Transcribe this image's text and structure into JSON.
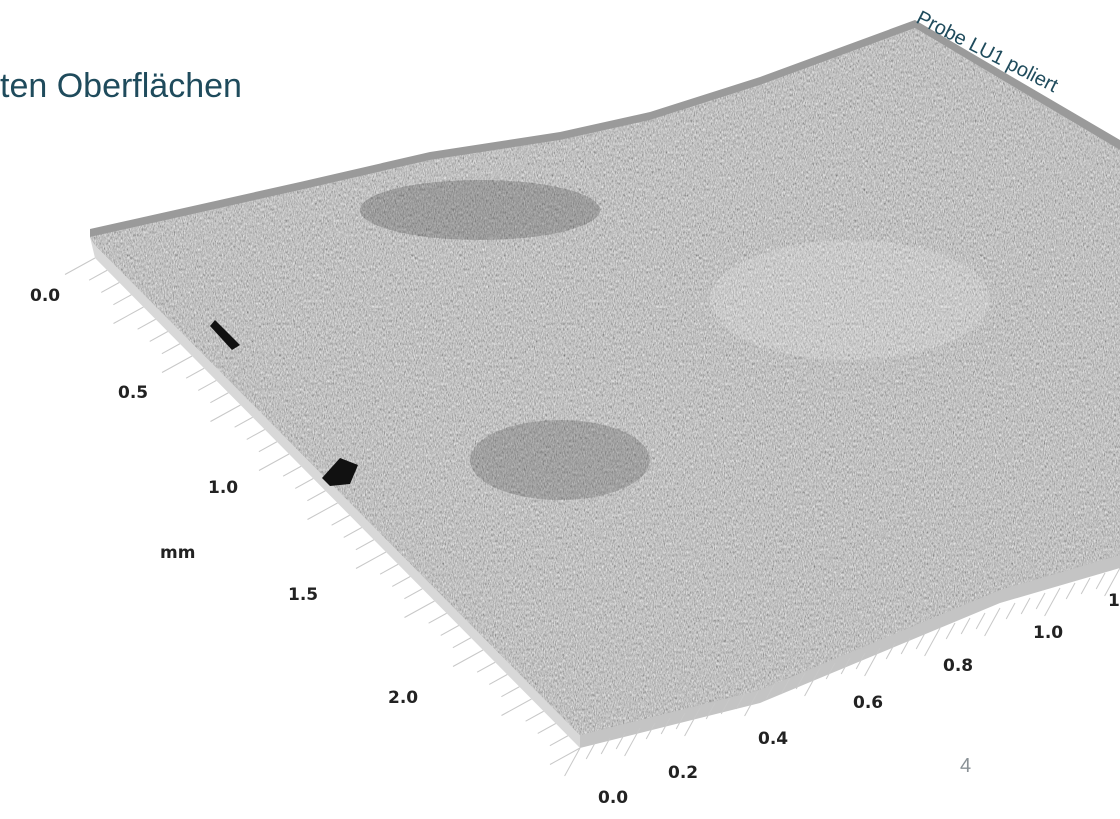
{
  "header": {
    "title": "ten Oberflächen",
    "sample_label": "Probe LU1 poliert"
  },
  "figure": {
    "y_axis": {
      "label": "mm",
      "ticks": [
        "0.0",
        "0.5",
        "1.0",
        "1.5",
        "2.0"
      ]
    },
    "x_axis": {
      "ticks": [
        "0.0",
        "0.2",
        "0.4",
        "0.6",
        "0.8",
        "1.0",
        "1"
      ]
    }
  },
  "footer": {
    "page_number": "4"
  }
}
